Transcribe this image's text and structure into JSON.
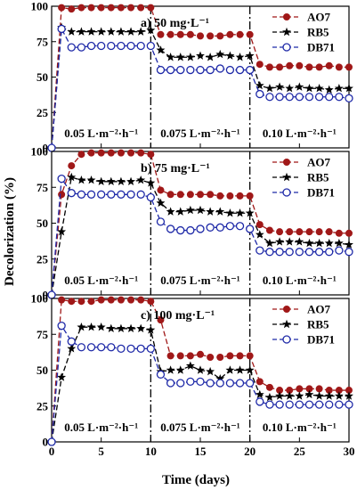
{
  "figure": {
    "ylabel": "Decolorization (%)",
    "xlabel": "Time (days)",
    "x_ticks": [
      0,
      5,
      10,
      15,
      20,
      25,
      30
    ],
    "y_ticks": [
      0,
      25,
      50,
      75,
      100
    ],
    "flux_labels": [
      "0.05 L·m⁻²·h⁻¹",
      "0.075 L·m⁻²·h⁻¹",
      "0.10 L·m⁻²·h⁻¹"
    ]
  },
  "chart_data": [
    {
      "type": "line",
      "title": "a) 50 mg·L⁻¹",
      "xlim": [
        0,
        30
      ],
      "ylim": [
        0,
        100
      ],
      "grid": false,
      "legend": "top-right",
      "phase_boundaries": [
        10,
        20
      ],
      "series": [
        {
          "name": "AO7",
          "color": "#a01818",
          "marker": "filled-circle",
          "x": [
            0,
            1,
            2,
            3,
            4,
            5,
            6,
            7,
            8,
            9,
            10,
            11,
            12,
            13,
            14,
            15,
            16,
            17,
            18,
            19,
            20,
            21,
            22,
            23,
            24,
            25,
            26,
            27,
            28,
            29,
            30
          ],
          "y": [
            0,
            99,
            98,
            99,
            99,
            99,
            99,
            99,
            99,
            99,
            99,
            80,
            80,
            80,
            80,
            79,
            79,
            79,
            80,
            80,
            80,
            59,
            57,
            57,
            58,
            58,
            57,
            57,
            58,
            57,
            57
          ]
        },
        {
          "name": "RB5",
          "color": "#000000",
          "marker": "star",
          "x": [
            0,
            1,
            2,
            3,
            4,
            5,
            6,
            7,
            8,
            9,
            10,
            11,
            12,
            13,
            14,
            15,
            16,
            17,
            18,
            19,
            20,
            21,
            22,
            23,
            24,
            25,
            26,
            27,
            28,
            29,
            30
          ],
          "y": [
            0,
            85,
            82,
            82,
            82,
            82,
            82,
            82,
            82,
            82,
            83,
            69,
            64,
            64,
            64,
            65,
            64,
            66,
            65,
            64,
            65,
            44,
            42,
            43,
            42,
            43,
            42,
            42,
            41,
            42,
            42
          ]
        },
        {
          "name": "DB71",
          "color": "#1f2aa8",
          "marker": "open-circle",
          "x": [
            0,
            1,
            2,
            3,
            4,
            5,
            6,
            7,
            8,
            9,
            10,
            11,
            12,
            13,
            14,
            15,
            16,
            17,
            18,
            19,
            20,
            21,
            22,
            23,
            24,
            25,
            26,
            27,
            28,
            29,
            30
          ],
          "y": [
            0,
            84,
            71,
            71,
            72,
            72,
            72,
            72,
            72,
            72,
            72,
            55,
            55,
            55,
            55,
            55,
            55,
            56,
            55,
            55,
            55,
            38,
            36,
            36,
            36,
            36,
            36,
            36,
            36,
            36,
            35
          ]
        }
      ]
    },
    {
      "type": "line",
      "title": "b) 75 mg·L⁻¹",
      "xlim": [
        0,
        30
      ],
      "ylim": [
        0,
        100
      ],
      "grid": false,
      "legend": "top-right",
      "phase_boundaries": [
        10,
        20
      ],
      "series": [
        {
          "name": "AO7",
          "color": "#a01818",
          "marker": "filled-circle",
          "x": [
            0,
            1,
            2,
            3,
            4,
            5,
            6,
            7,
            8,
            9,
            10,
            11,
            12,
            13,
            14,
            15,
            16,
            17,
            18,
            19,
            20,
            21,
            22,
            23,
            24,
            25,
            26,
            27,
            28,
            29,
            30
          ],
          "y": [
            0,
            70,
            90,
            98,
            99,
            99,
            99,
            99,
            99,
            99,
            98,
            73,
            70,
            70,
            70,
            70,
            70,
            69,
            69,
            69,
            69,
            49,
            45,
            44,
            44,
            44,
            44,
            44,
            44,
            43,
            43
          ]
        },
        {
          "name": "RB5",
          "color": "#000000",
          "marker": "star",
          "x": [
            0,
            1,
            2,
            3,
            4,
            5,
            6,
            7,
            8,
            9,
            10,
            11,
            12,
            13,
            14,
            15,
            16,
            17,
            18,
            19,
            20,
            21,
            22,
            23,
            24,
            25,
            26,
            27,
            28,
            29,
            30
          ],
          "y": [
            0,
            44,
            82,
            80,
            80,
            79,
            79,
            79,
            79,
            80,
            78,
            64,
            58,
            58,
            59,
            59,
            58,
            58,
            57,
            57,
            57,
            42,
            36,
            37,
            37,
            37,
            36,
            36,
            36,
            36,
            35
          ]
        },
        {
          "name": "DB71",
          "color": "#1f2aa8",
          "marker": "open-circle",
          "x": [
            0,
            1,
            2,
            3,
            4,
            5,
            6,
            7,
            8,
            9,
            10,
            11,
            12,
            13,
            14,
            15,
            16,
            17,
            18,
            19,
            20,
            21,
            22,
            23,
            24,
            25,
            26,
            27,
            28,
            29,
            30
          ],
          "y": [
            0,
            81,
            71,
            70,
            70,
            70,
            70,
            70,
            70,
            70,
            68,
            51,
            46,
            45,
            45,
            46,
            47,
            47,
            48,
            48,
            46,
            31,
            30,
            30,
            30,
            30,
            30,
            30,
            30,
            31,
            30
          ]
        }
      ]
    },
    {
      "type": "line",
      "title": "c) 100 mg·L⁻¹",
      "xlim": [
        0,
        30
      ],
      "ylim": [
        0,
        100
      ],
      "grid": false,
      "legend": "top-right",
      "phase_boundaries": [
        10,
        20
      ],
      "series": [
        {
          "name": "AO7",
          "color": "#a01818",
          "marker": "filled-circle",
          "x": [
            0,
            1,
            2,
            3,
            4,
            5,
            6,
            7,
            8,
            9,
            10,
            11,
            12,
            13,
            14,
            15,
            16,
            17,
            18,
            19,
            20,
            21,
            22,
            23,
            24,
            25,
            26,
            27,
            28,
            29,
            30
          ],
          "y": [
            0,
            99,
            98,
            98,
            98,
            99,
            99,
            99,
            99,
            99,
            98,
            85,
            60,
            60,
            60,
            61,
            59,
            59,
            60,
            60,
            60,
            42,
            38,
            36,
            36,
            37,
            37,
            37,
            36,
            36,
            36
          ]
        },
        {
          "name": "RB5",
          "color": "#000000",
          "marker": "star",
          "x": [
            0,
            1,
            2,
            3,
            4,
            5,
            6,
            7,
            8,
            9,
            10,
            11,
            12,
            13,
            14,
            15,
            16,
            17,
            18,
            19,
            20,
            21,
            22,
            23,
            24,
            25,
            26,
            27,
            28,
            29,
            30
          ],
          "y": [
            0,
            45,
            65,
            80,
            80,
            80,
            79,
            79,
            79,
            79,
            78,
            49,
            50,
            50,
            53,
            50,
            49,
            44,
            50,
            50,
            50,
            33,
            31,
            32,
            32,
            32,
            33,
            32,
            32,
            32,
            32
          ]
        },
        {
          "name": "DB71",
          "color": "#1f2aa8",
          "marker": "open-circle",
          "x": [
            0,
            1,
            2,
            3,
            4,
            5,
            6,
            7,
            8,
            9,
            10,
            11,
            12,
            13,
            14,
            15,
            16,
            17,
            18,
            19,
            20,
            21,
            22,
            23,
            24,
            25,
            26,
            27,
            28,
            29,
            30
          ],
          "y": [
            0,
            81,
            70,
            66,
            66,
            66,
            66,
            65,
            65,
            65,
            65,
            47,
            41,
            41,
            42,
            42,
            41,
            41,
            41,
            41,
            41,
            28,
            26,
            26,
            26,
            26,
            26,
            26,
            26,
            26,
            26
          ]
        }
      ]
    }
  ]
}
